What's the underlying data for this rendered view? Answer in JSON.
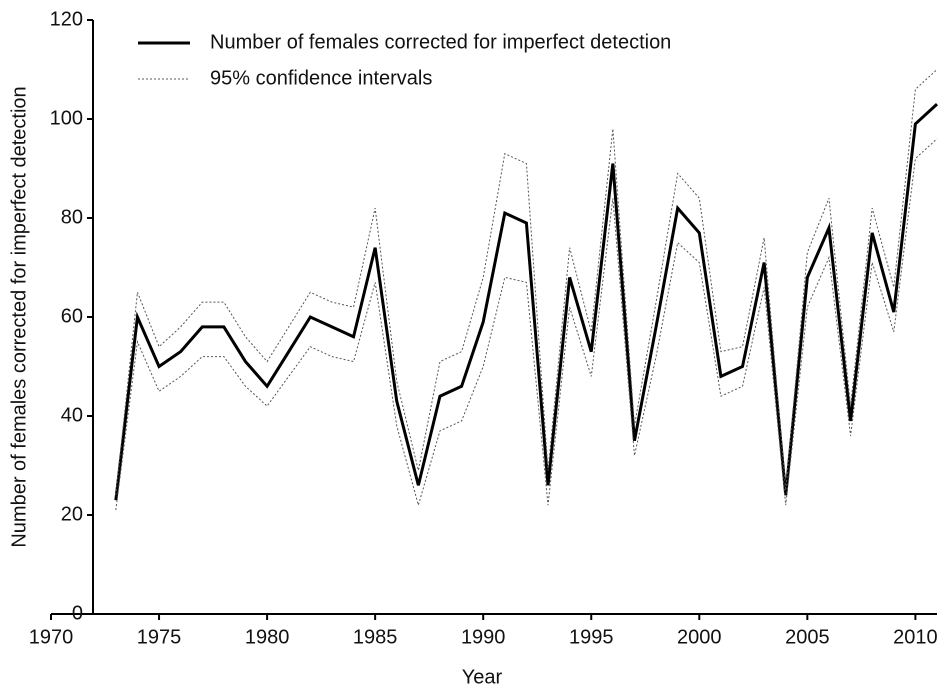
{
  "chart_data": {
    "type": "line",
    "x_label": "Year",
    "y_label": "Number of females corrected for imperfect detection",
    "x": [
      1973,
      1974,
      1975,
      1976,
      1977,
      1978,
      1979,
      1980,
      1981,
      1982,
      1983,
      1984,
      1985,
      1986,
      1987,
      1988,
      1989,
      1990,
      1991,
      1992,
      1993,
      1994,
      1995,
      1996,
      1997,
      1998,
      1999,
      2000,
      2001,
      2002,
      2003,
      2004,
      2005,
      2006,
      2007,
      2008,
      2009,
      2010,
      2011
    ],
    "series": [
      {
        "name": "Number of females corrected for imperfect detection",
        "color": "#000000",
        "dash": false,
        "values": [
          23,
          60,
          50,
          53,
          58,
          58,
          51,
          46,
          53,
          60,
          58,
          56,
          74,
          43,
          26,
          44,
          46,
          59,
          81,
          79,
          26,
          68,
          53,
          91,
          35,
          58,
          82,
          77,
          48,
          50,
          71,
          24,
          68,
          78,
          39,
          77,
          61,
          99,
          103
        ]
      },
      {
        "name": "95% confidence intervals",
        "color": "#555555",
        "dash": true,
        "upper": [
          24,
          65,
          54,
          58,
          63,
          63,
          56,
          51,
          58,
          65,
          63,
          62,
          82,
          47,
          29,
          51,
          53,
          68,
          93,
          91,
          29,
          74,
          57,
          98,
          38,
          63,
          89,
          84,
          53,
          54,
          76,
          25,
          73,
          84,
          42,
          82,
          66,
          106,
          110
        ],
        "lower": [
          21,
          55,
          45,
          48,
          52,
          52,
          46,
          42,
          48,
          54,
          52,
          51,
          67,
          38,
          22,
          37,
          39,
          50,
          68,
          67,
          22,
          62,
          48,
          84,
          32,
          52,
          75,
          71,
          44,
          46,
          66,
          22,
          62,
          72,
          36,
          71,
          57,
          92,
          96
        ]
      }
    ],
    "xlim": [
      1970,
      2011
    ],
    "xticks": [
      1970,
      1975,
      1980,
      1985,
      1990,
      1995,
      2000,
      2005,
      2010
    ],
    "ylim": [
      0,
      120
    ],
    "yticks": [
      0,
      20,
      40,
      60,
      80,
      100,
      120
    ],
    "legend": "top-left",
    "grid": false
  }
}
